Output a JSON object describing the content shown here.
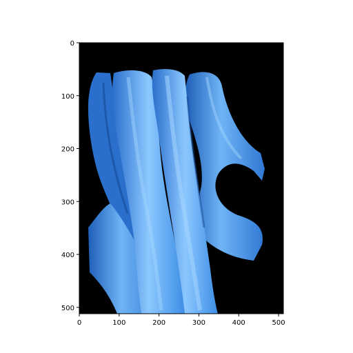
{
  "chart_data": {
    "type": "heatmap",
    "title": "",
    "xlabel": "",
    "ylabel": "",
    "xlim": [
      0,
      512
    ],
    "ylim": [
      512,
      0
    ],
    "x_ticks": [
      0,
      100,
      200,
      300,
      400,
      500
    ],
    "y_ticks": [
      0,
      100,
      200,
      300,
      400,
      500
    ],
    "x_tick_labels": [
      "0",
      "100",
      "200",
      "300",
      "400",
      "500"
    ],
    "y_tick_labels": [
      "0",
      "100",
      "200",
      "300",
      "400",
      "500"
    ],
    "grid": false,
    "background_color": "#000000",
    "image_description_colors": {
      "dark_blue": "#1f5fb8",
      "mid_blue": "#3d8ee6",
      "light_blue": "#6fb4f5",
      "highlight_blue": "#8cc8ff"
    }
  }
}
